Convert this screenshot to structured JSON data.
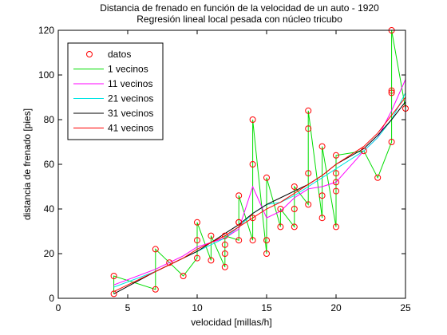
{
  "chart_data": {
    "type": "line",
    "title": "Distancia de frenado en función de la velocidad de un auto - 1920",
    "subtitle": "Regresión lineal local pesada con núcleo tricubo",
    "xlabel": "velocidad [millas/h]",
    "ylabel": "distancia de frenado [pies]",
    "xlim": [
      0,
      25
    ],
    "ylim": [
      0,
      120
    ],
    "xticks": [
      "0",
      "5",
      "10",
      "15",
      "20",
      "25"
    ],
    "yticks": [
      "0",
      "20",
      "40",
      "60",
      "80",
      "100",
      "120"
    ],
    "grid": false,
    "legend_position": "top-left",
    "points": {
      "name": "datos",
      "color": "#ff0000",
      "x": [
        4,
        4,
        7,
        7,
        8,
        9,
        10,
        10,
        10,
        11,
        11,
        12,
        12,
        12,
        12,
        13,
        13,
        13,
        13,
        14,
        14,
        14,
        14,
        15,
        15,
        15,
        16,
        16,
        17,
        17,
        17,
        18,
        18,
        18,
        18,
        19,
        19,
        19,
        20,
        20,
        20,
        20,
        20,
        22,
        23,
        24,
        24,
        24,
        24,
        25
      ],
      "y": [
        2,
        10,
        4,
        22,
        16,
        10,
        18,
        26,
        34,
        17,
        28,
        14,
        20,
        24,
        28,
        26,
        34,
        34,
        46,
        26,
        36,
        60,
        80,
        20,
        26,
        54,
        32,
        40,
        32,
        40,
        50,
        42,
        56,
        76,
        84,
        36,
        46,
        68,
        32,
        48,
        52,
        56,
        64,
        66,
        54,
        70,
        92,
        93,
        120,
        85
      ]
    },
    "series": [
      {
        "name": "1 vecinos",
        "color": "#00dd00",
        "x": [
          4,
          4,
          7,
          7,
          8,
          9,
          10,
          10,
          10,
          11,
          11,
          12,
          12,
          12,
          12,
          13,
          13,
          13,
          13,
          14,
          14,
          14,
          14,
          15,
          15,
          15,
          16,
          16,
          17,
          17,
          17,
          18,
          18,
          18,
          18,
          19,
          19,
          19,
          20,
          20,
          20,
          20,
          20,
          22,
          23,
          24,
          24,
          24,
          24,
          25
        ],
        "y": [
          2,
          10,
          4,
          22,
          16,
          10,
          18,
          26,
          34,
          17,
          28,
          14,
          20,
          24,
          28,
          26,
          34,
          34,
          46,
          26,
          36,
          60,
          80,
          20,
          26,
          54,
          32,
          40,
          32,
          40,
          50,
          42,
          56,
          76,
          84,
          36,
          46,
          68,
          32,
          48,
          52,
          56,
          64,
          66,
          54,
          70,
          92,
          93,
          120,
          85
        ]
      },
      {
        "name": "11 vecinos",
        "color": "#ff00ff",
        "x": [
          4,
          7,
          8,
          9,
          10,
          11,
          12,
          13,
          14,
          15,
          16,
          17,
          18,
          19,
          20,
          22,
          23,
          24,
          25
        ],
        "y": [
          6,
          13,
          16,
          19,
          23,
          25,
          27,
          31,
          50,
          36,
          39,
          45,
          49,
          50,
          52,
          66,
          72,
          84,
          98
        ]
      },
      {
        "name": "21 vecinos",
        "color": "#00e5e5",
        "x": [
          4,
          7,
          8,
          9,
          10,
          11,
          12,
          13,
          14,
          15,
          16,
          17,
          18,
          19,
          20,
          22,
          23,
          24,
          25
        ],
        "y": [
          5,
          12,
          15,
          18,
          21,
          24,
          27,
          32,
          38,
          42,
          43,
          46,
          50,
          54,
          58,
          66,
          72,
          80,
          92
        ]
      },
      {
        "name": "31 vecinos",
        "color": "#000000",
        "x": [
          4,
          7,
          8,
          9,
          10,
          11,
          12,
          13,
          14,
          15,
          16,
          17,
          18,
          19,
          20,
          22,
          23,
          24,
          25
        ],
        "y": [
          2,
          12,
          15,
          18,
          21,
          25,
          29,
          33,
          38,
          42,
          45,
          48,
          51,
          55,
          60,
          67,
          73,
          80,
          88
        ]
      },
      {
        "name": "41 vecinos",
        "color": "#ff0000",
        "x": [
          4,
          7,
          8,
          9,
          10,
          11,
          12,
          13,
          14,
          15,
          16,
          17,
          18,
          19,
          20,
          22,
          23,
          24,
          25
        ],
        "y": [
          3,
          12,
          15,
          18,
          22,
          25,
          28,
          32,
          36,
          40,
          43,
          47,
          51,
          55,
          60,
          68,
          74,
          82,
          90
        ]
      }
    ]
  }
}
